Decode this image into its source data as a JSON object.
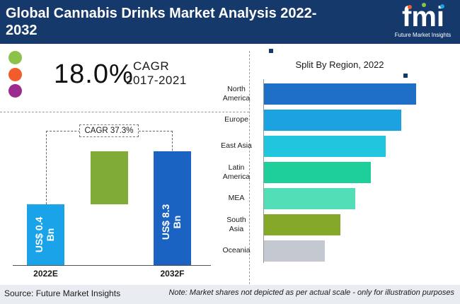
{
  "header": {
    "title": "Global Cannabis Drinks Market Analysis 2022-2032",
    "logo_text": "fmi",
    "logo_tagline": "Future Market Insights"
  },
  "kpi": {
    "value": "18.0%",
    "label": "CAGR",
    "period": "2017-2021"
  },
  "legend_dots": [
    {
      "color": "#8bc34a"
    },
    {
      "color": "#f25c2b"
    },
    {
      "color": "#9c2a8f"
    }
  ],
  "growth_chart": {
    "cagr_label": "CAGR 37.3%",
    "bars": [
      {
        "year": "2022E",
        "label": "US$ 0.4 Bn",
        "line1": "US$ 0.4",
        "line2": "Bn",
        "color": "#1aa3e8"
      },
      {
        "year": "2032F",
        "label": "US$ 8.3 Bn",
        "line1": "US$ 8.3",
        "line2": "Bn",
        "color": "#1a63c2"
      }
    ],
    "increment_color": "#7fab36"
  },
  "region_chart": {
    "title": "Split By Region, 2022",
    "regions": [
      {
        "line1": "North",
        "line2": "America",
        "share": 100,
        "color": "#1f6fc6"
      },
      {
        "line1": "Europe",
        "line2": "",
        "share": 90,
        "color": "#1aa3e0"
      },
      {
        "line1": "East Asia",
        "line2": "",
        "share": 80,
        "color": "#22c5de"
      },
      {
        "line1": "Latin",
        "line2": "America",
        "share": 70,
        "color": "#1fcf9b"
      },
      {
        "line1": "MEA",
        "line2": "",
        "share": 60,
        "color": "#52dfb8"
      },
      {
        "line1": "South",
        "line2": "Asia",
        "share": 50,
        "color": "#86a829"
      },
      {
        "line1": "Oceania",
        "line2": "",
        "share": 40,
        "color": "#c4c8d0"
      }
    ]
  },
  "chart_data": [
    {
      "type": "bar",
      "categories": [
        "2022E",
        "2032F"
      ],
      "values": [
        0.4,
        8.3
      ],
      "annotation": "CAGR 37.3%"
    },
    {
      "type": "bar",
      "orientation": "horizontal",
      "title": "Split By Region, 2022",
      "categories": [
        "North America",
        "Europe",
        "East Asia",
        "Latin America",
        "MEA",
        "South Asia",
        "Oceania"
      ],
      "values": [
        100,
        90,
        80,
        70,
        60,
        50,
        40
      ],
      "note": "Market shares not depicted as per actual scale - only for illustration purposes"
    }
  ],
  "footer": {
    "source": "Source: Future Market Insights",
    "note": "Note: Market shares not depicted as per actual scale - only for illustration purposes"
  }
}
